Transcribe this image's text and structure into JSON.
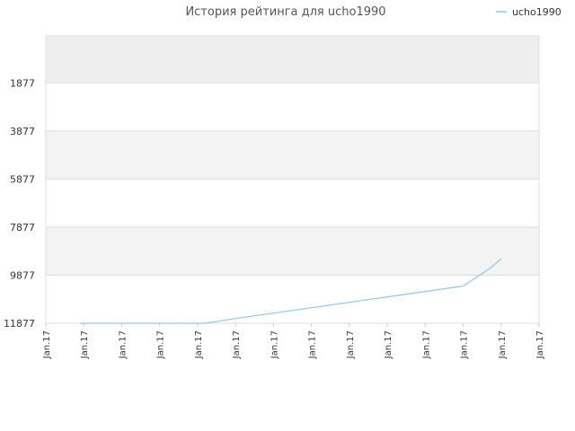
{
  "chart_data": {
    "type": "line",
    "title": "История рейтинга для ucho1990",
    "xlabel": "",
    "ylabel": "",
    "y_inverted": true,
    "ylim": [
      11877,
      -77
    ],
    "y_ticks": [
      1877,
      3877,
      5877,
      7877,
      9877,
      11877
    ],
    "x_tick_labels": [
      "Jan.17",
      "Jan.17",
      "Jan.17",
      "Jan.17",
      "Jan.17",
      "Jan.17",
      "Jan.17",
      "Jan.17",
      "Jan.17",
      "Jan.17",
      "Jan.17",
      "Jan.17",
      "Jan.17",
      "Jan.17"
    ],
    "grid": true,
    "legend_position": "top-right",
    "series": [
      {
        "name": "ucho1990",
        "color": "#92c5ec",
        "x": [
          0.9,
          2.0,
          3.0,
          4.0,
          4.2,
          5.0,
          6.0,
          7.0,
          8.0,
          9.0,
          10.0,
          11.0,
          11.7,
          12.0
        ],
        "values": [
          11877,
          11877,
          11877,
          11877,
          11877,
          11680,
          11455,
          11230,
          11005,
          10780,
          10555,
          10330,
          9600,
          9200
        ]
      }
    ]
  }
}
